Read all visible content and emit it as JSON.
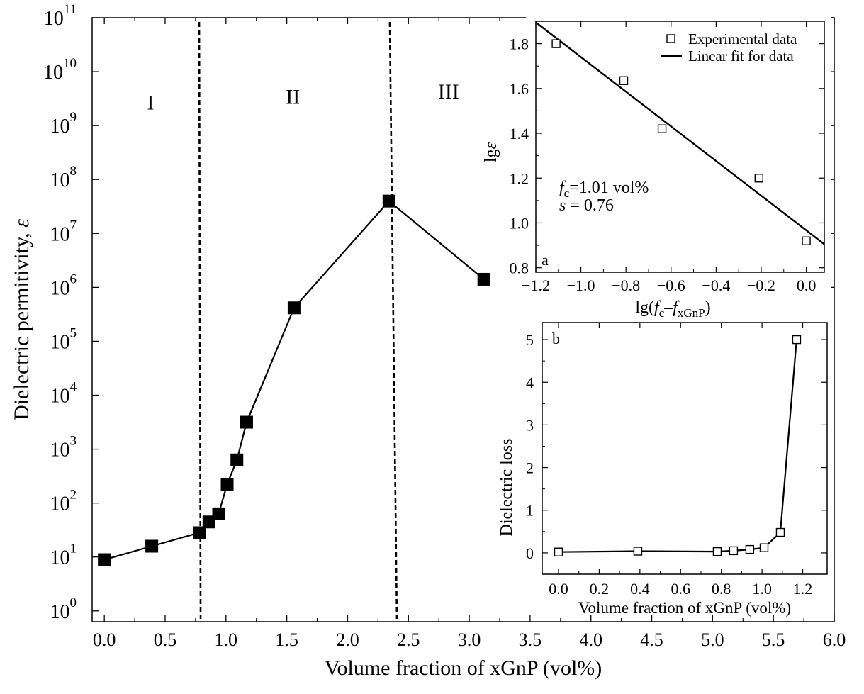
{
  "chart_data": [
    {
      "id": "main",
      "type": "line",
      "title": "",
      "xlabel": "Volume fraction of xGnP (vol%)",
      "ylabel": "Dielectric permitivity, ε",
      "xlim": [
        -0.1,
        6.0
      ],
      "ylim_log10": [
        -0.2,
        11
      ],
      "yscale": "log",
      "x_ticks": [
        "0.0",
        "0.5",
        "1.0",
        "1.5",
        "2.0",
        "2.5",
        "3.0",
        "3.5",
        "4.0",
        "4.5",
        "5.0",
        "5.5",
        "6.0"
      ],
      "y_tick_exponents": [
        "0",
        "1",
        "2",
        "3",
        "4",
        "5",
        "6",
        "7",
        "8",
        "9",
        "10",
        "11"
      ],
      "region_labels": [
        {
          "text": "I",
          "x": 0.38,
          "log_y": 9.3
        },
        {
          "text": "II",
          "x": 1.55,
          "log_y": 9.4
        },
        {
          "text": "III",
          "x": 2.83,
          "log_y": 9.5
        }
      ],
      "boundaries": [
        0.78,
        2.37
      ],
      "series": [
        {
          "name": "Dielectric permitivity",
          "marker": "filled-square",
          "x": [
            0.0,
            0.39,
            0.78,
            0.86,
            0.94,
            1.01,
            1.09,
            1.17,
            1.56,
            2.34,
            3.12
          ],
          "log_y": [
            0.95,
            1.2,
            1.45,
            1.65,
            1.8,
            2.35,
            2.8,
            3.5,
            5.62,
            7.6,
            6.15
          ]
        }
      ]
    },
    {
      "id": "inset-a",
      "type": "scatter",
      "panel_label": "a",
      "xlabel_parts": [
        "lg(",
        "f",
        "c",
        "–",
        "f",
        "xGnP",
        ")"
      ],
      "ylabel_parts": [
        "lg",
        "ε"
      ],
      "xlim": [
        -1.2,
        0.08
      ],
      "ylim": [
        0.78,
        1.9
      ],
      "x_ticks": [
        "−1.2",
        "−1.0",
        "−0.8",
        "−0.6",
        "−0.4",
        "−0.2",
        "0.0"
      ],
      "y_ticks": [
        "0.8",
        "1.0",
        "1.2",
        "1.4",
        "1.6",
        "1.8"
      ],
      "legend": [
        "Experimental data",
        "Linear fit for data"
      ],
      "annotation": {
        "fc_symbol": "f",
        "fc_sub": "c",
        "fc_value": "=1.01 vol%",
        "s_symbol": "s",
        "s_value": " = 0.76"
      },
      "series": [
        {
          "name": "Experimental data",
          "marker": "open-square",
          "x": [
            -1.11,
            -0.81,
            -0.64,
            -0.21,
            0.0
          ],
          "y": [
            1.8,
            1.635,
            1.42,
            1.2,
            0.92
          ]
        },
        {
          "name": "Linear fit for data",
          "x": [
            -1.2,
            0.08
          ],
          "y": [
            1.895,
            0.905
          ]
        }
      ]
    },
    {
      "id": "inset-b",
      "type": "line",
      "panel_label": "b",
      "xlabel": "Volume fraction of xGnP (vol%)",
      "ylabel": "Dielectric loss",
      "xlim": [
        -0.08,
        1.32
      ],
      "ylim": [
        -0.5,
        5.4
      ],
      "x_ticks": [
        "0.0",
        "0.2",
        "0.4",
        "0.6",
        "0.8",
        "1.0",
        "1.2"
      ],
      "y_ticks": [
        "0",
        "1",
        "2",
        "3",
        "4",
        "5"
      ],
      "series": [
        {
          "name": "Dielectric loss",
          "marker": "open-square",
          "x": [
            0.0,
            0.39,
            0.78,
            0.86,
            0.94,
            1.01,
            1.09,
            1.17
          ],
          "y": [
            0.02,
            0.04,
            0.03,
            0.05,
            0.08,
            0.12,
            0.48,
            5.0
          ]
        }
      ]
    }
  ]
}
